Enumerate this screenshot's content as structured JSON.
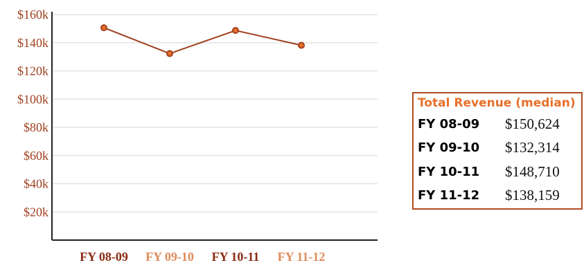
{
  "colors": {
    "line": "#a0401f",
    "point_fill": "#e8702a",
    "axis_tick": "#a0401f",
    "x_label_dark": "#8b2a12",
    "x_label_light": "#e08a5a",
    "table_border": "#b04a20",
    "table_title": "#e8702a"
  },
  "chart_data": {
    "type": "line",
    "categories": [
      "FY 08-09",
      "FY 09-10",
      "FY 10-11",
      "FY 11-12"
    ],
    "series": [
      {
        "values": [
          150624,
          132314,
          148710,
          138159
        ]
      }
    ],
    "ylim": [
      0,
      160000
    ],
    "yticks": [
      20000,
      40000,
      60000,
      80000,
      100000,
      120000,
      140000,
      160000
    ],
    "ytick_labels": [
      "$20k",
      "$40k",
      "$60k",
      "$80k",
      "$100k",
      "$120k",
      "$140k",
      "$160k"
    ],
    "grid": true,
    "title": "",
    "xlabel": "",
    "ylabel": ""
  },
  "summary_table": {
    "title": "Total Revenue (median)",
    "rows": [
      {
        "label": "FY 08-09",
        "value": "$150,624"
      },
      {
        "label": "FY 09-10",
        "value": "$132,314"
      },
      {
        "label": "FY 10-11",
        "value": "$148,710"
      },
      {
        "label": "FY 11-12",
        "value": "$138,159"
      }
    ]
  }
}
